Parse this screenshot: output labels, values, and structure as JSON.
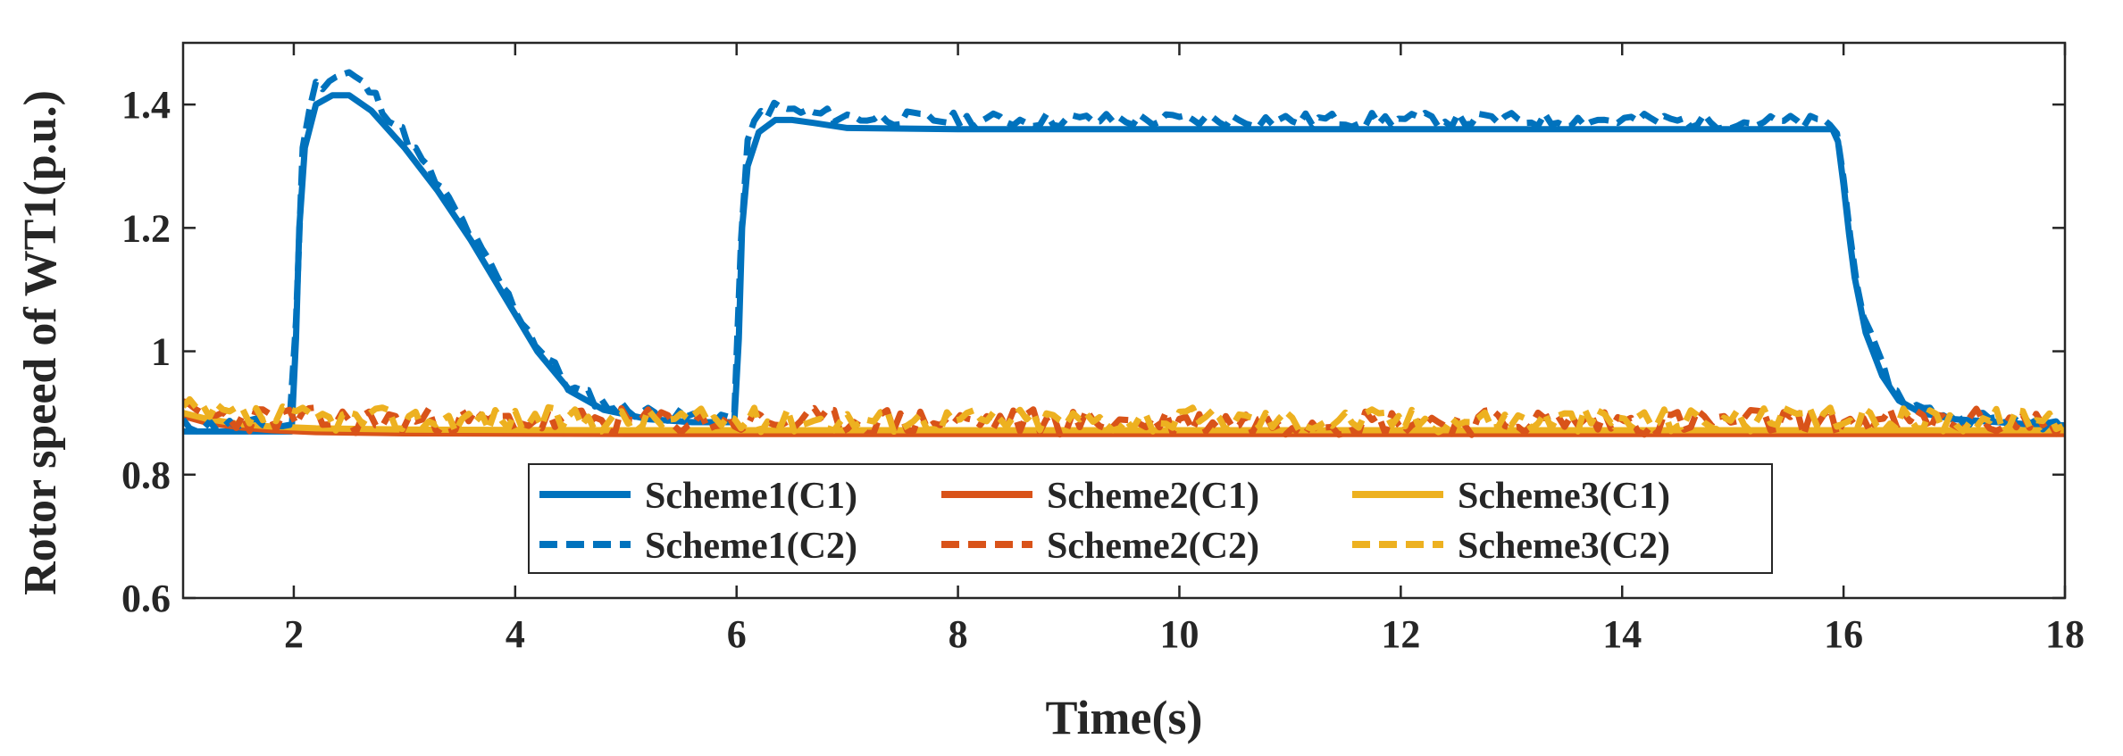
{
  "chart_data": {
    "type": "line",
    "title": "",
    "xlabel": "Time(s)",
    "ylabel": "Rotor speed of WT1(p.u.)",
    "xlim": [
      1,
      18
    ],
    "ylim": [
      0.6,
      1.5
    ],
    "xticks": [
      2,
      4,
      6,
      8,
      10,
      12,
      14,
      16,
      18
    ],
    "xtick_labels": [
      "2",
      "4",
      "6",
      "8",
      "10",
      "12",
      "14",
      "16",
      "18"
    ],
    "yticks": [
      0.6,
      0.8,
      1.0,
      1.2,
      1.4
    ],
    "ytick_labels": [
      "0.6",
      "0.8",
      "1",
      "1.2",
      "1.4"
    ],
    "grid": false,
    "legend_position": "bottom-center",
    "colors": {
      "scheme1": "#0072BD",
      "scheme2": "#D95319",
      "scheme3": "#EDB120",
      "axis": "#262626"
    },
    "series": [
      {
        "name": "Scheme1(C1)",
        "color": "#0072BD",
        "style": "solid",
        "noise": 0,
        "seed": 0,
        "x": [
          1,
          1.97,
          1.98,
          2.02,
          2.05,
          2.1,
          2.2,
          2.35,
          2.5,
          2.7,
          3.0,
          3.3,
          3.6,
          3.9,
          4.2,
          4.5,
          4.8,
          5.2,
          5.6,
          5.97,
          5.98,
          6.02,
          6.05,
          6.1,
          6.2,
          6.35,
          6.5,
          6.7,
          7.0,
          8.0,
          10.0,
          12.0,
          14.0,
          15.9,
          15.95,
          16.0,
          16.05,
          16.1,
          16.2,
          16.35,
          16.5,
          16.7,
          17.0,
          17.4,
          17.8,
          18
        ],
        "y": [
          0.87,
          0.87,
          0.87,
          1.02,
          1.2,
          1.33,
          1.4,
          1.415,
          1.415,
          1.39,
          1.33,
          1.26,
          1.18,
          1.09,
          1.0,
          0.935,
          0.905,
          0.89,
          0.885,
          0.885,
          0.885,
          1.02,
          1.2,
          1.3,
          1.355,
          1.375,
          1.375,
          1.37,
          1.362,
          1.36,
          1.36,
          1.36,
          1.36,
          1.36,
          1.34,
          1.27,
          1.19,
          1.12,
          1.03,
          0.96,
          0.92,
          0.9,
          0.89,
          0.885,
          0.88,
          0.88
        ]
      },
      {
        "name": "Scheme2(C1)",
        "color": "#D95319",
        "style": "solid",
        "noise": 0,
        "seed": 0,
        "x": [
          1,
          1.2,
          1.5,
          1.8,
          2.2,
          3,
          5,
          8,
          12,
          16,
          18
        ],
        "y": [
          0.895,
          0.885,
          0.877,
          0.872,
          0.869,
          0.867,
          0.866,
          0.866,
          0.866,
          0.866,
          0.866
        ]
      },
      {
        "name": "Scheme3(C1)",
        "color": "#EDB120",
        "style": "solid",
        "noise": 0,
        "seed": 0,
        "x": [
          1,
          1.2,
          1.5,
          1.8,
          2.2,
          3,
          5,
          8,
          12,
          16,
          18
        ],
        "y": [
          0.9,
          0.891,
          0.882,
          0.878,
          0.875,
          0.873,
          0.872,
          0.872,
          0.872,
          0.872,
          0.872
        ]
      },
      {
        "name": "Scheme1(C2)",
        "color": "#0072BD",
        "style": "dashed",
        "noise": 0.012,
        "seed": 11,
        "x": [
          1,
          1.97,
          1.98,
          2.02,
          2.05,
          2.1,
          2.2,
          2.35,
          2.5,
          2.7,
          3.0,
          3.3,
          3.6,
          3.9,
          4.2,
          4.5,
          4.8,
          5.2,
          5.6,
          5.97,
          5.98,
          6.02,
          6.05,
          6.1,
          6.2,
          6.35,
          6.5,
          6.7,
          7.0,
          8.0,
          10.0,
          12.0,
          14.0,
          15.9,
          15.95,
          16.0,
          16.05,
          16.1,
          16.2,
          16.35,
          16.5,
          16.7,
          17.0,
          17.4,
          17.8,
          18
        ],
        "y": [
          0.88,
          0.88,
          0.88,
          1.05,
          1.25,
          1.38,
          1.43,
          1.445,
          1.45,
          1.42,
          1.35,
          1.27,
          1.19,
          1.1,
          1.01,
          0.94,
          0.915,
          0.9,
          0.895,
          0.895,
          0.895,
          1.05,
          1.25,
          1.34,
          1.385,
          1.395,
          1.39,
          1.385,
          1.38,
          1.375,
          1.375,
          1.375,
          1.375,
          1.37,
          1.35,
          1.28,
          1.2,
          1.13,
          1.04,
          0.97,
          0.925,
          0.905,
          0.895,
          0.89,
          0.885,
          0.885
        ]
      },
      {
        "name": "Scheme2(C2)",
        "color": "#D95319",
        "style": "dashed",
        "noise": 0.022,
        "seed": 23,
        "x": [
          1,
          1.2,
          1.5,
          1.8,
          2.2,
          3,
          5,
          8,
          12,
          16,
          18
        ],
        "y": [
          0.9,
          0.895,
          0.892,
          0.89,
          0.888,
          0.887,
          0.886,
          0.886,
          0.886,
          0.886,
          0.886
        ]
      },
      {
        "name": "Scheme3(C2)",
        "color": "#EDB120",
        "style": "dashed",
        "noise": 0.02,
        "seed": 37,
        "x": [
          1,
          1.2,
          1.5,
          1.8,
          2.2,
          3,
          5,
          8,
          12,
          16,
          18
        ],
        "y": [
          0.905,
          0.898,
          0.894,
          0.892,
          0.891,
          0.89,
          0.889,
          0.889,
          0.889,
          0.889,
          0.889
        ]
      }
    ],
    "legend": [
      {
        "label": "Scheme1(C1)",
        "color": "#0072BD",
        "style": "solid"
      },
      {
        "label": "Scheme2(C1)",
        "color": "#D95319",
        "style": "solid"
      },
      {
        "label": "Scheme3(C1)",
        "color": "#EDB120",
        "style": "solid"
      },
      {
        "label": "Scheme1(C2)",
        "color": "#0072BD",
        "style": "dashed"
      },
      {
        "label": "Scheme2(C2)",
        "color": "#D95319",
        "style": "dashed"
      },
      {
        "label": "Scheme3(C2)",
        "color": "#EDB120",
        "style": "dashed"
      }
    ]
  }
}
